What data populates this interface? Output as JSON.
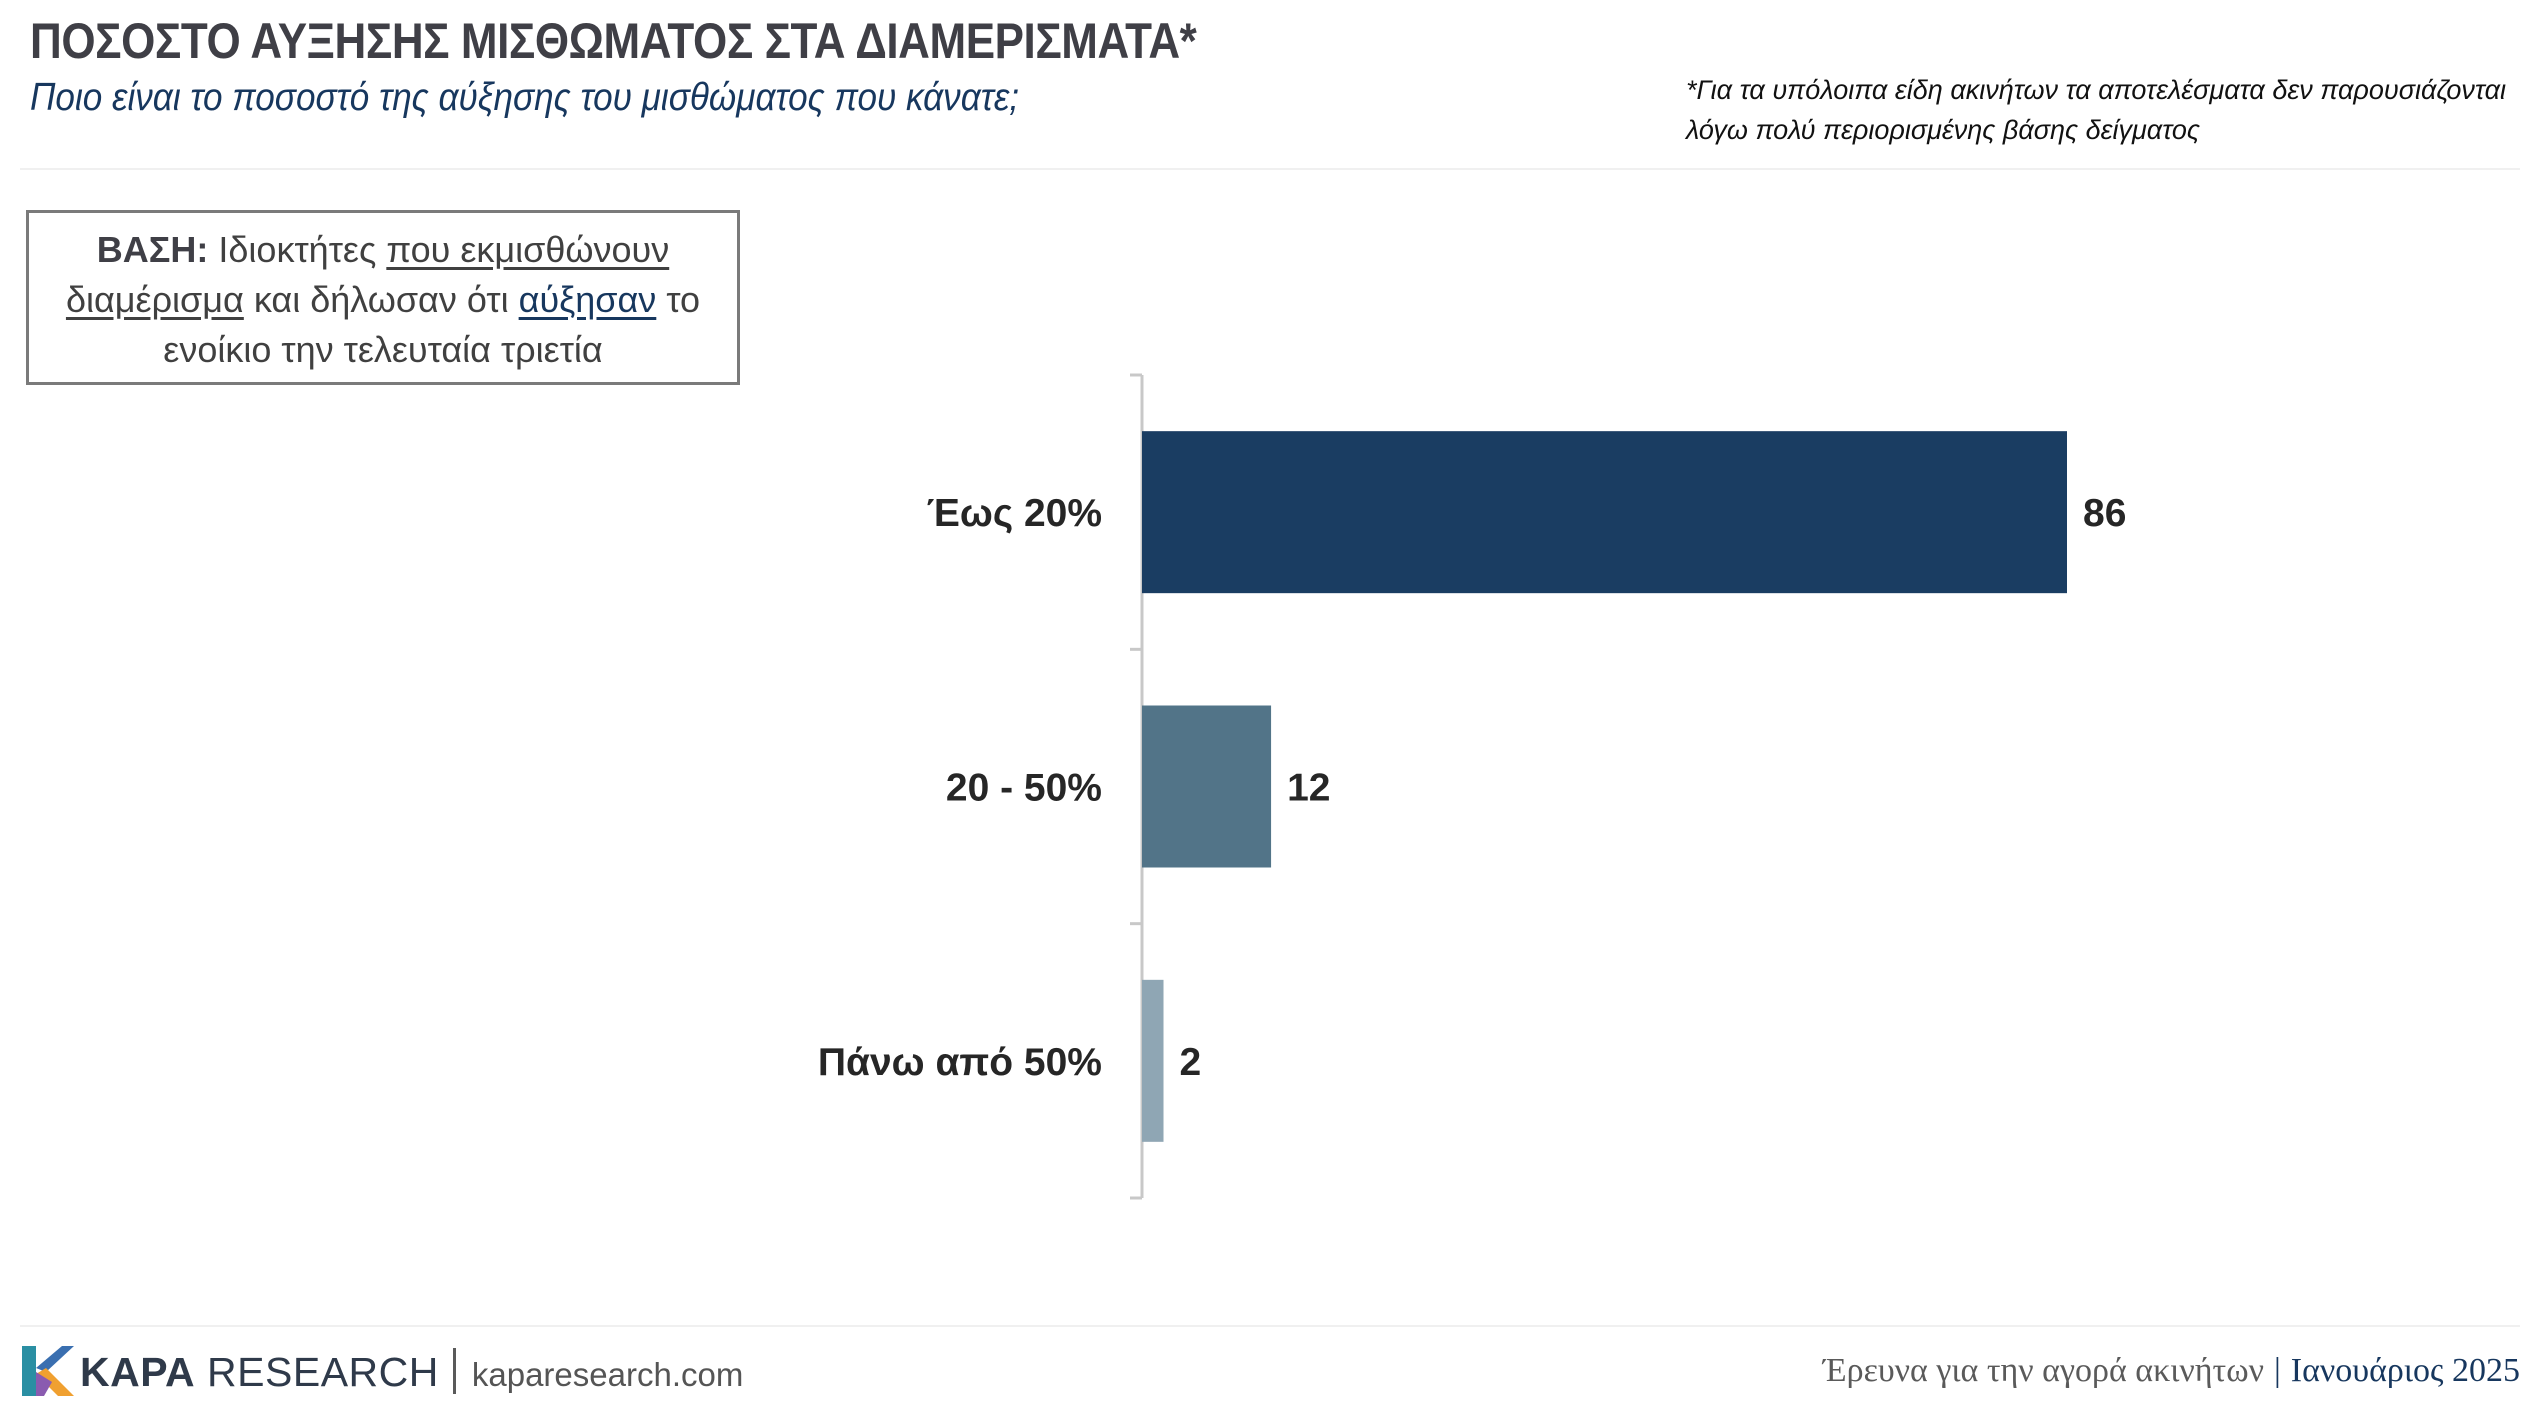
{
  "header": {
    "title": "ΠΟΣΟΣΤΟ ΑΥΞΗΣΗΣ ΜΙΣΘΩΜΑΤΟΣ ΣΤΑ ΔΙΑΜΕΡΙΣΜΑΤΑ*",
    "subtitle": "Ποιο είναι το ποσοστό της αύξησης του μισθώματος που κάνατε;",
    "note": "*Για τα υπόλοιπα είδη ακινήτων τα αποτελέσματα δεν παρουσιάζονται λόγω πολύ περιορισμένης βάσης δείγματος"
  },
  "base_box": {
    "label": "ΒΑΣΗ:",
    "text1": "Ιδιοκτήτες",
    "text2_underlined": "που εκμισθώνουν διαμέρισμα",
    "text3": "και δήλωσαν ότι",
    "text4_underlined": "αύξησαν",
    "text5": "το ενοίκιο την τελευταία τριετία"
  },
  "chart_data": {
    "type": "bar",
    "orientation": "horizontal",
    "categories": [
      "Έως 20%",
      "20 - 50%",
      "Πάνω από 50%"
    ],
    "values": [
      86,
      12,
      2
    ],
    "bar_colors": [
      "#1a3d62",
      "#527488",
      "#8fa6b4"
    ],
    "xlim": [
      0,
      100
    ],
    "title": "",
    "xlabel": "",
    "ylabel": ""
  },
  "footer": {
    "brand_bold": "KAPA",
    "brand_rest": "RESEARCH",
    "website": "kaparesearch.com",
    "survey": "Έρευνα για την αγορά ακινήτων",
    "date": "Ιανουάριος 2025"
  },
  "colors": {
    "navy": "#17375e",
    "title_gray": "#3f3f46"
  }
}
